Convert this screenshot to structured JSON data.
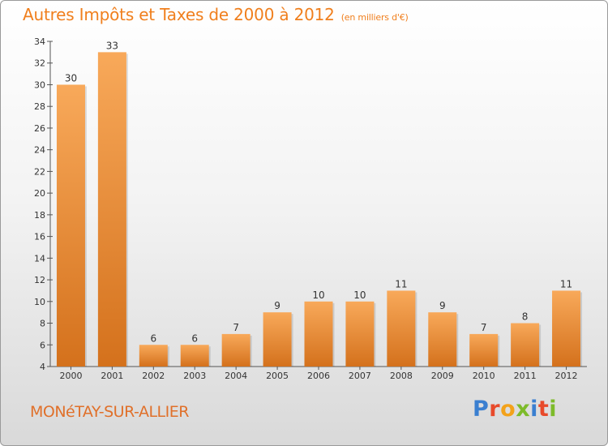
{
  "title": "Autres Impôts et Taxes de 2000 à 2012",
  "unit_note": "(en milliers d'€)",
  "commune": "MONéTAY-SUR-ALLIER",
  "logo": {
    "letters": [
      "P",
      "r",
      "o",
      "x",
      "i",
      "t",
      "i"
    ],
    "colors": [
      "#3a7fd0",
      "#e84a2b",
      "#f3a21a",
      "#7dbb2a",
      "#3a7fd0",
      "#e84a2b",
      "#7dbb2a"
    ]
  },
  "chart_data": {
    "type": "bar",
    "categories": [
      "2000",
      "2001",
      "2002",
      "2003",
      "2004",
      "2005",
      "2006",
      "2007",
      "2008",
      "2009",
      "2010",
      "2011",
      "2012"
    ],
    "values": [
      30,
      33,
      6,
      6,
      7,
      9,
      10,
      10,
      11,
      9,
      7,
      8,
      11
    ],
    "data_labels": [
      "30",
      "33",
      "6",
      "6",
      "7",
      "9",
      "10",
      "10",
      "11",
      "9",
      "7",
      "8",
      "11"
    ],
    "ylim": [
      4,
      34
    ],
    "yticks": [
      "4",
      "6",
      "8",
      "10",
      "12",
      "14",
      "16",
      "18",
      "20",
      "22",
      "24",
      "26",
      "28",
      "30",
      "32",
      "34"
    ],
    "grid": false,
    "bar_color_top": "#f8a95a",
    "bar_color_bottom": "#d4711c"
  }
}
